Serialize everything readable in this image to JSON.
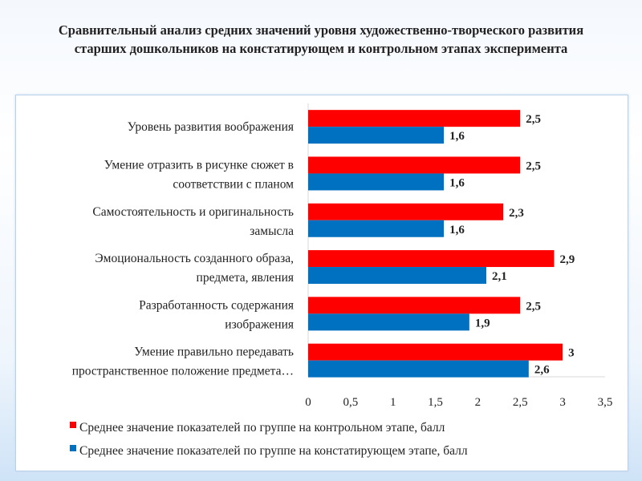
{
  "title": "Сравнительный анализ средних значений уровня художественно-творческого развития старших дошкольников на констатирующем и контрольном этапах эксперимента",
  "chart_data": {
    "type": "bar",
    "orientation": "horizontal",
    "title": "Сравнительный анализ средних значений уровня художественно-творческого развития старших дошкольников на констатирующем и контрольном этапах эксперимента",
    "categories": [
      [
        "Уровень развития воображения"
      ],
      [
        "Умение отразить в рисунке сюжет в",
        "соответствии с планом"
      ],
      [
        "Самостоятельность и оригинальность",
        "замысла"
      ],
      [
        "Эмоциональность созданного образа,",
        "предмета, явления"
      ],
      [
        "Разработанность содержания",
        "изображения"
      ],
      [
        "Умение правильно передавать",
        "пространственное положение предмета…"
      ]
    ],
    "series": [
      {
        "name": "Среднее значение показателей по группе на контрольном этапе, балл",
        "color": "#ff0000",
        "values": [
          2.5,
          2.5,
          2.3,
          2.9,
          2.5,
          3
        ],
        "labels": [
          "2,5",
          "2,5",
          "2,3",
          "2,9",
          "2,5",
          "3"
        ]
      },
      {
        "name": "Среднее значение показателей по группе на констатирующем этапе, балл",
        "color": "#0070c0",
        "values": [
          1.6,
          1.6,
          1.6,
          2.1,
          1.9,
          2.6
        ],
        "labels": [
          "1,6",
          "1,6",
          "1,6",
          "2,1",
          "1,9",
          "2,6"
        ]
      }
    ],
    "xlim": [
      0,
      3.5
    ],
    "xticks": [
      0,
      0.5,
      1,
      1.5,
      2,
      2.5,
      3,
      3.5
    ],
    "xtick_labels": [
      "0",
      "0,5",
      "1",
      "1,5",
      "2",
      "2,5",
      "3",
      "3,5"
    ],
    "grid": false,
    "legend": "bottom",
    "xlabel": "",
    "ylabel": ""
  }
}
